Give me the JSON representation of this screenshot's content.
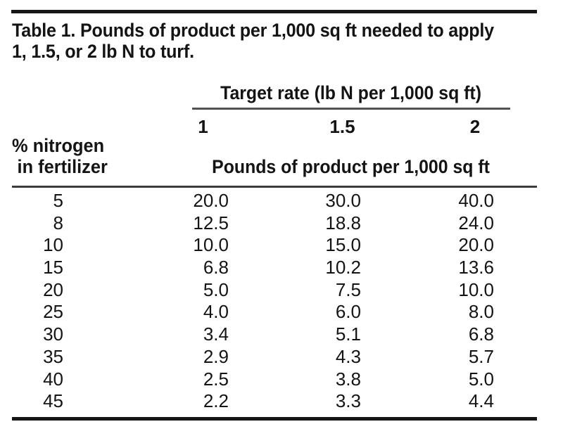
{
  "title": {
    "line1": "Table 1. Pounds of product per 1,000 sq ft needed to apply",
    "line2": "1, 1.5, or 2 lb N to turf."
  },
  "table": {
    "target_rate_header": "Target rate (lb N per 1,000 sq ft)",
    "rate_columns": [
      "1",
      "1.5",
      "2"
    ],
    "row_header": {
      "line1": "% nitrogen",
      "line2": "in fertilizer"
    },
    "units_header": "Pounds of product per 1,000 sq ft",
    "rows": [
      {
        "nitrogen_pct": "5",
        "values": [
          "20.0",
          "30.0",
          "40.0"
        ]
      },
      {
        "nitrogen_pct": "8",
        "values": [
          "12.5",
          "18.8",
          "24.0"
        ]
      },
      {
        "nitrogen_pct": "10",
        "values": [
          "10.0",
          "15.0",
          "20.0"
        ]
      },
      {
        "nitrogen_pct": "15",
        "values": [
          "6.8",
          "10.2",
          "13.6"
        ]
      },
      {
        "nitrogen_pct": "20",
        "values": [
          "5.0",
          "7.5",
          "10.0"
        ]
      },
      {
        "nitrogen_pct": "25",
        "values": [
          "4.0",
          "6.0",
          "8.0"
        ]
      },
      {
        "nitrogen_pct": "30",
        "values": [
          "3.4",
          "5.1",
          "6.8"
        ]
      },
      {
        "nitrogen_pct": "35",
        "values": [
          "2.9",
          "4.3",
          "5.7"
        ]
      },
      {
        "nitrogen_pct": "40",
        "values": [
          "2.5",
          "3.8",
          "5.0"
        ]
      },
      {
        "nitrogen_pct": "45",
        "values": [
          "2.2",
          "3.3",
          "4.4"
        ]
      }
    ]
  },
  "chart_data": {
    "type": "table",
    "title": "Table 1. Pounds of product per 1,000 sq ft needed to apply 1, 1.5, or 2 lb N to turf.",
    "column_group_header": "Target rate (lb N per 1,000 sq ft)",
    "columns": [
      "% nitrogen in fertilizer",
      "1",
      "1.5",
      "2"
    ],
    "units": "Pounds of product per 1,000 sq ft",
    "rows": [
      [
        5,
        20.0,
        30.0,
        40.0
      ],
      [
        8,
        12.5,
        18.8,
        24.0
      ],
      [
        10,
        10.0,
        15.0,
        20.0
      ],
      [
        15,
        6.8,
        10.2,
        13.6
      ],
      [
        20,
        5.0,
        7.5,
        10.0
      ],
      [
        25,
        4.0,
        6.0,
        8.0
      ],
      [
        30,
        3.4,
        5.1,
        6.8
      ],
      [
        35,
        2.9,
        4.3,
        5.7
      ],
      [
        40,
        2.5,
        3.8,
        5.0
      ],
      [
        45,
        2.2,
        3.3,
        4.4
      ]
    ]
  },
  "colors": {
    "background": "#ffffff",
    "text": "#141414",
    "rule_heavy": "#161616",
    "rule_mid": "#3c3c3c",
    "rule_light": "#525252"
  }
}
